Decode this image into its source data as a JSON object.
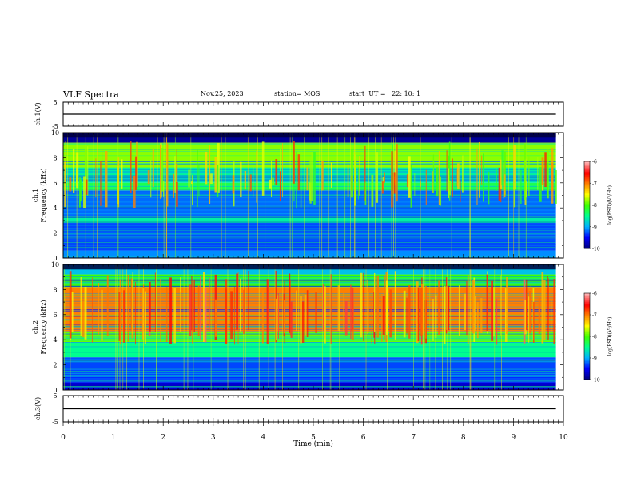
{
  "header": {
    "title": "VLF Spectra",
    "date": "Nov.25, 2023",
    "station": "station= MOS",
    "start": "start  UT =   22: 10: 1"
  },
  "chart_data": [
    {
      "type": "line",
      "panel": "ch1-voltage",
      "ylabel": "ch.1(V)",
      "ylim": [
        -5,
        5
      ],
      "yticks": [
        "5",
        "-5"
      ],
      "xlim": [
        0,
        10
      ],
      "series": [
        {
          "x": [
            0,
            9.85
          ],
          "y": [
            0,
            0
          ]
        }
      ]
    },
    {
      "type": "heatmap",
      "panel": "ch1-spectrogram",
      "ylabel": "Frequency (kHz)",
      "channel_label": "ch.1",
      "ylim": [
        0,
        10
      ],
      "yticks": [
        "0",
        "2",
        "4",
        "6",
        "8",
        "10"
      ],
      "xlim": [
        0,
        10
      ],
      "data_x_end": 9.85,
      "colorbar": {
        "label": "log(PSD)(V²/Hz)",
        "range": [
          -10,
          -6
        ],
        "ticks": [
          "-6",
          "-7",
          "-8",
          "-9",
          "-10"
        ]
      },
      "bands": [
        {
          "fmin": 0,
          "fmax": 0.6,
          "level": -9.1
        },
        {
          "fmin": 0.6,
          "fmax": 2.8,
          "level": -9.3
        },
        {
          "fmin": 2.8,
          "fmax": 3.3,
          "level": -8.6
        },
        {
          "fmin": 3.3,
          "fmax": 5.4,
          "level": -9.2
        },
        {
          "fmin": 5.4,
          "fmax": 6.0,
          "level": -8.3
        },
        {
          "fmin": 6.0,
          "fmax": 7.2,
          "level": -8.6
        },
        {
          "fmin": 7.2,
          "fmax": 9.2,
          "level": -7.8
        },
        {
          "fmin": 9.2,
          "fmax": 10,
          "level": -9.9
        }
      ]
    },
    {
      "type": "heatmap",
      "panel": "ch2-spectrogram",
      "ylabel": "Frequency (kHz)",
      "channel_label": "ch.2",
      "ylim": [
        0,
        10
      ],
      "yticks": [
        "0",
        "2",
        "4",
        "6",
        "8",
        "10"
      ],
      "xlim": [
        0,
        10
      ],
      "data_x_end": 9.85,
      "colorbar": {
        "label": "log(PSD)(V²/Hz)",
        "range": [
          -10,
          -6
        ],
        "ticks": [
          "-6",
          "-7",
          "-8",
          "-9",
          "-10"
        ]
      },
      "bands": [
        {
          "fmin": 0,
          "fmax": 0.6,
          "level": -9.7
        },
        {
          "fmin": 0.6,
          "fmax": 2.6,
          "level": -9.3
        },
        {
          "fmin": 2.6,
          "fmax": 3.8,
          "level": -8.5
        },
        {
          "fmin": 3.8,
          "fmax": 4.6,
          "level": -7.9
        },
        {
          "fmin": 4.6,
          "fmax": 8.2,
          "level": -7.0
        },
        {
          "fmin": 8.2,
          "fmax": 9.2,
          "level": -8.0
        },
        {
          "fmin": 9.2,
          "fmax": 10,
          "level": -8.9
        }
      ]
    },
    {
      "type": "line",
      "panel": "ch3-voltage",
      "ylabel": "ch.3(V)",
      "ylim": [
        -5,
        5
      ],
      "yticks": [
        "5",
        "-5"
      ],
      "xlim": [
        0,
        10
      ],
      "xlabel": "Time  (min)",
      "xticks": [
        "0",
        "1",
        "2",
        "3",
        "4",
        "5",
        "6",
        "7",
        "8",
        "9",
        "10"
      ],
      "series": [
        {
          "x": [
            0,
            9.85
          ],
          "y": [
            0,
            0
          ]
        }
      ]
    }
  ],
  "colors": {
    "colormap": [
      "#000080",
      "#0000ff",
      "#00b0ff",
      "#00ff90",
      "#40ff00",
      "#ffff00",
      "#ff8000",
      "#ff0000",
      "#ffb0b0"
    ]
  }
}
